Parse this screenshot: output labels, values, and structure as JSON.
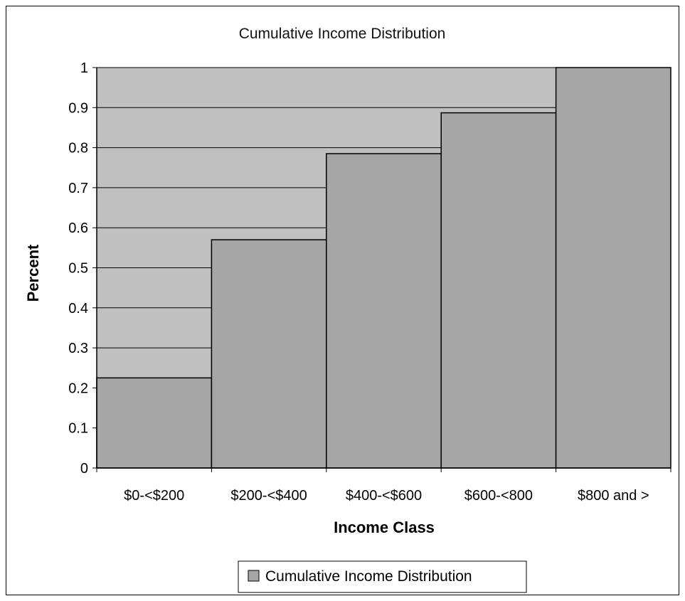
{
  "chart_data": {
    "type": "bar",
    "title": "Cumulative Income Distribution",
    "xlabel": "Income Class",
    "ylabel": "Percent",
    "categories": [
      "$0-<$200",
      "$200-<$400",
      "$400-<$600",
      "$600-<800",
      "$800 and >"
    ],
    "series": [
      {
        "name": "Cumulative Income Distribution",
        "values": [
          0.225,
          0.57,
          0.785,
          0.887,
          1.0
        ]
      }
    ],
    "ylim": [
      0,
      1
    ],
    "yticks": [
      "0",
      "0.1",
      "0.2",
      "0.3",
      "0.4",
      "0.5",
      "0.6",
      "0.7",
      "0.8",
      "0.9",
      "1"
    ],
    "grid": true,
    "legend_position": "bottom",
    "colors": {
      "plot_background": "#c0c0c0",
      "bar_fill": "#a6a6a6",
      "bar_stroke": "#000000",
      "gridline": "#000000"
    }
  }
}
